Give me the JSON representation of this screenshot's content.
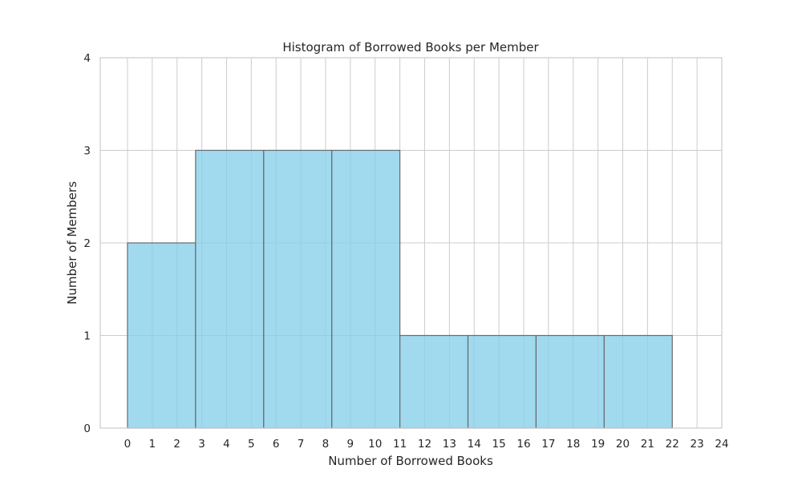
{
  "chart_data": {
    "type": "bar",
    "title": "Histogram of Borrowed Books per Member",
    "xlabel": "Number of Borrowed Books",
    "ylabel": "Number of Members",
    "xlim": [
      -1.1,
      24
    ],
    "ylim": [
      0,
      4
    ],
    "xticks": [
      0,
      1,
      2,
      3,
      4,
      5,
      6,
      7,
      8,
      9,
      10,
      11,
      12,
      13,
      14,
      15,
      16,
      17,
      18,
      19,
      20,
      21,
      22,
      23,
      24
    ],
    "yticks": [
      0,
      1,
      2,
      3,
      4
    ],
    "bins": [
      {
        "x0": 0.0,
        "x1": 2.75,
        "count": 2
      },
      {
        "x0": 2.75,
        "x1": 5.5,
        "count": 3
      },
      {
        "x0": 5.5,
        "x1": 8.25,
        "count": 3
      },
      {
        "x0": 8.25,
        "x1": 11.0,
        "count": 3
      },
      {
        "x0": 11.0,
        "x1": 13.75,
        "count": 1
      },
      {
        "x0": 13.75,
        "x1": 16.5,
        "count": 1
      },
      {
        "x0": 16.5,
        "x1": 19.25,
        "count": 1
      },
      {
        "x0": 19.25,
        "x1": 22.0,
        "count": 1
      }
    ],
    "grid": true,
    "bar_color": "#87ceeb",
    "edge_color": "#6b6b6b",
    "grid_color": "#cccccc"
  }
}
